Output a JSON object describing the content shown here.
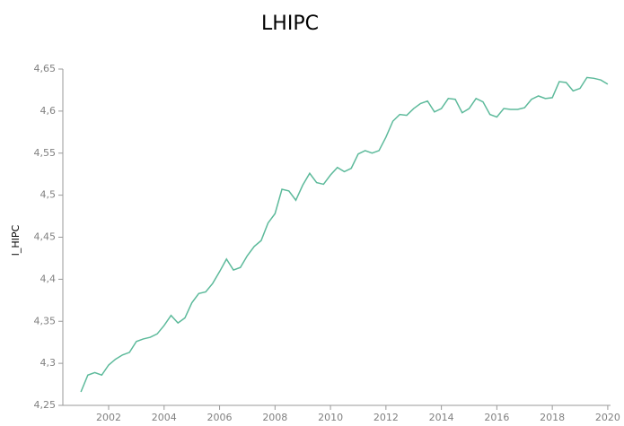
{
  "chart_data": {
    "type": "line",
    "title": "LHIPC",
    "y_label": "l_HIPC",
    "x": [
      2001.0,
      2001.25,
      2001.5,
      2001.75,
      2002.0,
      2002.25,
      2002.5,
      2002.75,
      2003.0,
      2003.25,
      2003.5,
      2003.75,
      2004.0,
      2004.25,
      2004.5,
      2004.75,
      2005.0,
      2005.25,
      2005.5,
      2005.75,
      2006.0,
      2006.25,
      2006.5,
      2006.75,
      2007.0,
      2007.25,
      2007.5,
      2007.75,
      2008.0,
      2008.25,
      2008.5,
      2008.75,
      2009.0,
      2009.25,
      2009.5,
      2009.75,
      2010.0,
      2010.25,
      2010.5,
      2010.75,
      2011.0,
      2011.25,
      2011.5,
      2011.75,
      2012.0,
      2012.25,
      2012.5,
      2012.75,
      2013.0,
      2013.25,
      2013.5,
      2013.75,
      2014.0,
      2014.25,
      2014.5,
      2014.75,
      2015.0,
      2015.25,
      2015.5,
      2015.75,
      2016.0,
      2016.25,
      2016.5,
      2016.75,
      2017.0,
      2017.25,
      2017.5,
      2017.75,
      2018.0,
      2018.25,
      2018.5,
      2018.75,
      2019.0,
      2019.25,
      2019.5,
      2019.75,
      2020.0
    ],
    "series": [
      {
        "name": "l_HIPC",
        "color": "#5dba9b",
        "values": [
          4.266,
          4.286,
          4.289,
          4.286,
          4.298,
          4.305,
          4.31,
          4.313,
          4.326,
          4.329,
          4.331,
          4.335,
          4.345,
          4.357,
          4.348,
          4.354,
          4.372,
          4.383,
          4.385,
          4.395,
          4.409,
          4.424,
          4.411,
          4.414,
          4.428,
          4.439,
          4.446,
          4.467,
          4.478,
          4.507,
          4.505,
          4.494,
          4.512,
          4.526,
          4.515,
          4.513,
          4.524,
          4.533,
          4.528,
          4.532,
          4.549,
          4.553,
          4.55,
          4.553,
          4.569,
          4.588,
          4.596,
          4.595,
          4.603,
          4.609,
          4.612,
          4.599,
          4.603,
          4.615,
          4.614,
          4.598,
          4.603,
          4.615,
          4.611,
          4.596,
          4.593,
          4.603,
          4.602,
          4.602,
          4.604,
          4.614,
          4.618,
          4.615,
          4.616,
          4.635,
          4.634,
          4.624,
          4.627,
          4.64,
          4.639,
          4.637,
          4.632
        ]
      }
    ],
    "xlim": [
      2000.4,
      2020.1
    ],
    "xticks": [
      2002,
      2004,
      2006,
      2008,
      2010,
      2012,
      2014,
      2016,
      2018,
      2020
    ],
    "ylim": [
      4.25,
      4.65
    ],
    "yticks": [
      {
        "value": 4.25,
        "label": "4,25"
      },
      {
        "value": 4.3,
        "label": "4,3"
      },
      {
        "value": 4.35,
        "label": "4,35"
      },
      {
        "value": 4.4,
        "label": "4,4"
      },
      {
        "value": 4.45,
        "label": "4,45"
      },
      {
        "value": 4.5,
        "label": "4,5"
      },
      {
        "value": 4.55,
        "label": "4,55"
      },
      {
        "value": 4.6,
        "label": "4,6"
      },
      {
        "value": 4.65,
        "label": "4,65"
      }
    ],
    "grid": false
  }
}
